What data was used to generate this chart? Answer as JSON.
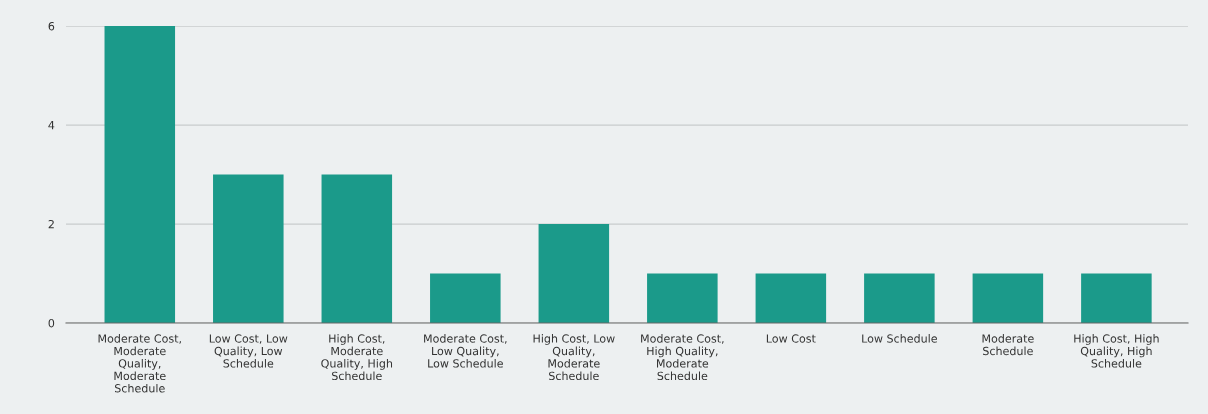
{
  "chart_data": {
    "type": "bar",
    "categories": [
      "Moderate Cost, Moderate Quality, Moderate Schedule",
      "Low Cost, Low Quality, Low Schedule",
      "High Cost, Moderate Quality, High Schedule",
      "Moderate Cost, Low Quality, Low Schedule",
      "High Cost, Low Quality, Moderate Schedule",
      "Moderate Cost, High Quality, Moderate Schedule",
      "Low Cost",
      "Low Schedule",
      "Moderate Schedule",
      "High Cost, High Quality, High Schedule"
    ],
    "values": [
      6,
      3,
      3,
      1,
      2,
      1,
      1,
      1,
      1,
      1
    ],
    "color": "#1b9a8a",
    "ylim": [
      0,
      6
    ],
    "yticks": [
      0,
      2,
      4,
      6
    ],
    "grid": "y",
    "legend": false
  }
}
